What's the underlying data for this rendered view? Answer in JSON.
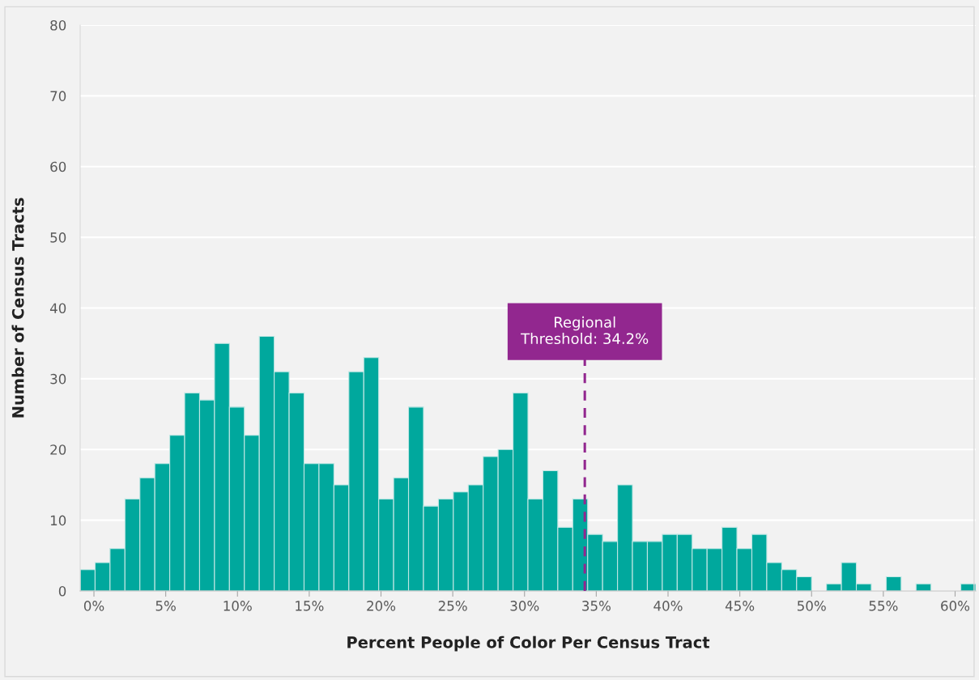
{
  "chart_data": {
    "type": "histogram",
    "xlabel": "Percent People of Color Per Census Tract",
    "ylabel": "Number of Census Tracts",
    "bins": [
      -0.96,
      0.08,
      1.12,
      2.16,
      3.2,
      4.24,
      5.28,
      6.32,
      7.36,
      8.4,
      9.44,
      10.48,
      11.52,
      12.56,
      13.6,
      14.64,
      15.68,
      16.72,
      17.76,
      18.8,
      19.84,
      20.88,
      21.92,
      22.96,
      24.0,
      25.04,
      26.08,
      27.12,
      28.16,
      29.2,
      30.24,
      31.28,
      32.32,
      33.36,
      34.4,
      35.44,
      36.48,
      37.52,
      38.56,
      39.6,
      40.64,
      41.68,
      42.72,
      43.76,
      44.8,
      45.84,
      46.88,
      47.92,
      48.96,
      50.0,
      51.04,
      52.08,
      53.12,
      54.16,
      55.2,
      56.24,
      57.28,
      58.32,
      59.36,
      60.4,
      61.44
    ],
    "values": [
      3,
      4,
      6,
      13,
      16,
      18,
      22,
      28,
      27,
      35,
      26,
      22,
      36,
      31,
      28,
      18,
      18,
      15,
      31,
      33,
      13,
      16,
      26,
      12,
      13,
      14,
      15,
      19,
      20,
      28,
      13,
      17,
      9,
      13,
      8,
      7,
      15,
      7,
      7,
      8,
      8,
      6,
      6,
      9,
      6,
      8,
      4,
      3,
      2,
      0,
      1,
      4,
      1,
      0,
      2,
      0,
      1,
      0,
      0,
      1
    ],
    "color": "#00a89d",
    "xlim": [
      -0.96,
      61.44
    ],
    "xticks": [
      {
        "value": 0,
        "label": "0%"
      },
      {
        "value": 5,
        "label": "5%"
      },
      {
        "value": 10,
        "label": "10%"
      },
      {
        "value": 15,
        "label": "15%"
      },
      {
        "value": 20,
        "label": "20%"
      },
      {
        "value": 25,
        "label": "25%"
      },
      {
        "value": 30,
        "label": "30%"
      },
      {
        "value": 35,
        "label": "35%"
      },
      {
        "value": 40,
        "label": "40%"
      },
      {
        "value": 45,
        "label": "45%"
      },
      {
        "value": 50,
        "label": "50%"
      },
      {
        "value": 55,
        "label": "55%"
      },
      {
        "value": 60,
        "label": "60%"
      }
    ],
    "ylim": [
      0,
      80
    ],
    "yticks": [
      0,
      10,
      20,
      30,
      40,
      50,
      60,
      70,
      80
    ],
    "grid": "y",
    "ref_lines": [
      {
        "axis": "x",
        "value": 34.2,
        "label": "Regional\nThreshold: 34.2%",
        "color": "#92278f",
        "line_style": "dashed"
      }
    ]
  }
}
